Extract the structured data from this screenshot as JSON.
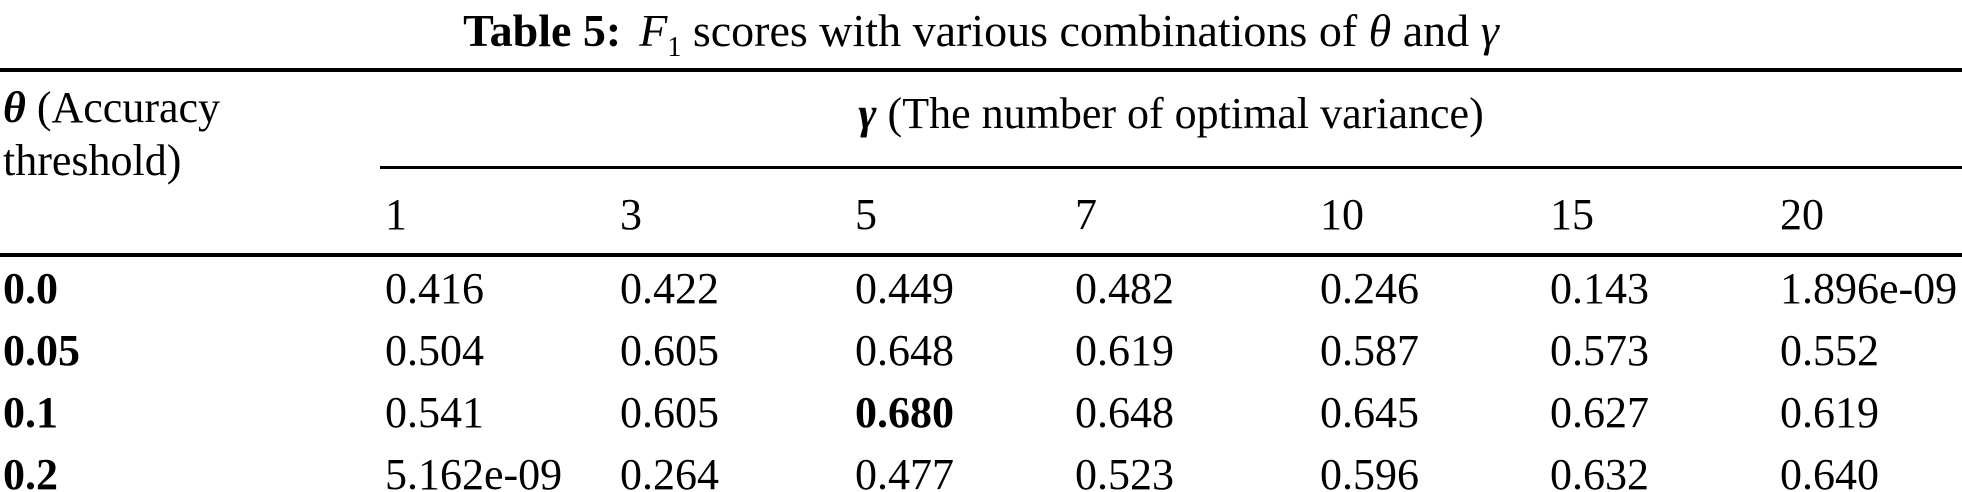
{
  "title": {
    "tag": "Table 5:",
    "f_symbol": "F",
    "f_subscript": "1",
    "middle": " scores with various combinations of ",
    "theta_symbol": "θ",
    "connector": " and ",
    "gamma_symbol": "γ"
  },
  "table": {
    "row_header": {
      "symbol": "θ",
      "label": " (Accuracy threshold)"
    },
    "col_header": {
      "symbol": "γ",
      "label": " (The number of optimal variance)"
    },
    "columns": [
      "1",
      "3",
      "5",
      "7",
      "10",
      "15",
      "20"
    ],
    "rows": [
      {
        "label": "0.0",
        "values": [
          "0.416",
          "0.422",
          "0.449",
          "0.482",
          "0.246",
          "0.143",
          "1.896e-09"
        ]
      },
      {
        "label": "0.05",
        "values": [
          "0.504",
          "0.605",
          "0.648",
          "0.619",
          "0.587",
          "0.573",
          "0.552"
        ]
      },
      {
        "label": "0.1",
        "values": [
          "0.541",
          "0.605",
          "0.680",
          "0.648",
          "0.645",
          "0.627",
          "0.619"
        ]
      },
      {
        "label": "0.2",
        "values": [
          "5.162e-09",
          "0.264",
          "0.477",
          "0.523",
          "0.596",
          "0.632",
          "0.640"
        ]
      }
    ],
    "bold_cell": {
      "row_label": "0.1",
      "column": "5",
      "value": "0.680"
    }
  },
  "chart_data": {
    "type": "table",
    "title": "Table 5: F1 scores with various combinations of theta and gamma",
    "row_variable": "theta (Accuracy threshold)",
    "column_variable": "gamma (The number of optimal variance)",
    "columns": [
      1,
      3,
      5,
      7,
      10,
      15,
      20
    ],
    "rows": [
      {
        "theta": "0.0",
        "f1_scores": [
          0.416,
          0.422,
          0.449,
          0.482,
          0.246,
          0.143,
          1.896e-09
        ]
      },
      {
        "theta": "0.05",
        "f1_scores": [
          0.504,
          0.605,
          0.648,
          0.619,
          0.587,
          0.573,
          0.552
        ]
      },
      {
        "theta": "0.1",
        "f1_scores": [
          0.541,
          0.605,
          0.68,
          0.648,
          0.645,
          0.627,
          0.619
        ]
      },
      {
        "theta": "0.2",
        "f1_scores": [
          5.162e-09,
          0.264,
          0.477,
          0.523,
          0.596,
          0.632,
          0.64
        ]
      }
    ],
    "best_value": {
      "theta": "0.1",
      "gamma": 5,
      "f1": 0.68
    }
  }
}
